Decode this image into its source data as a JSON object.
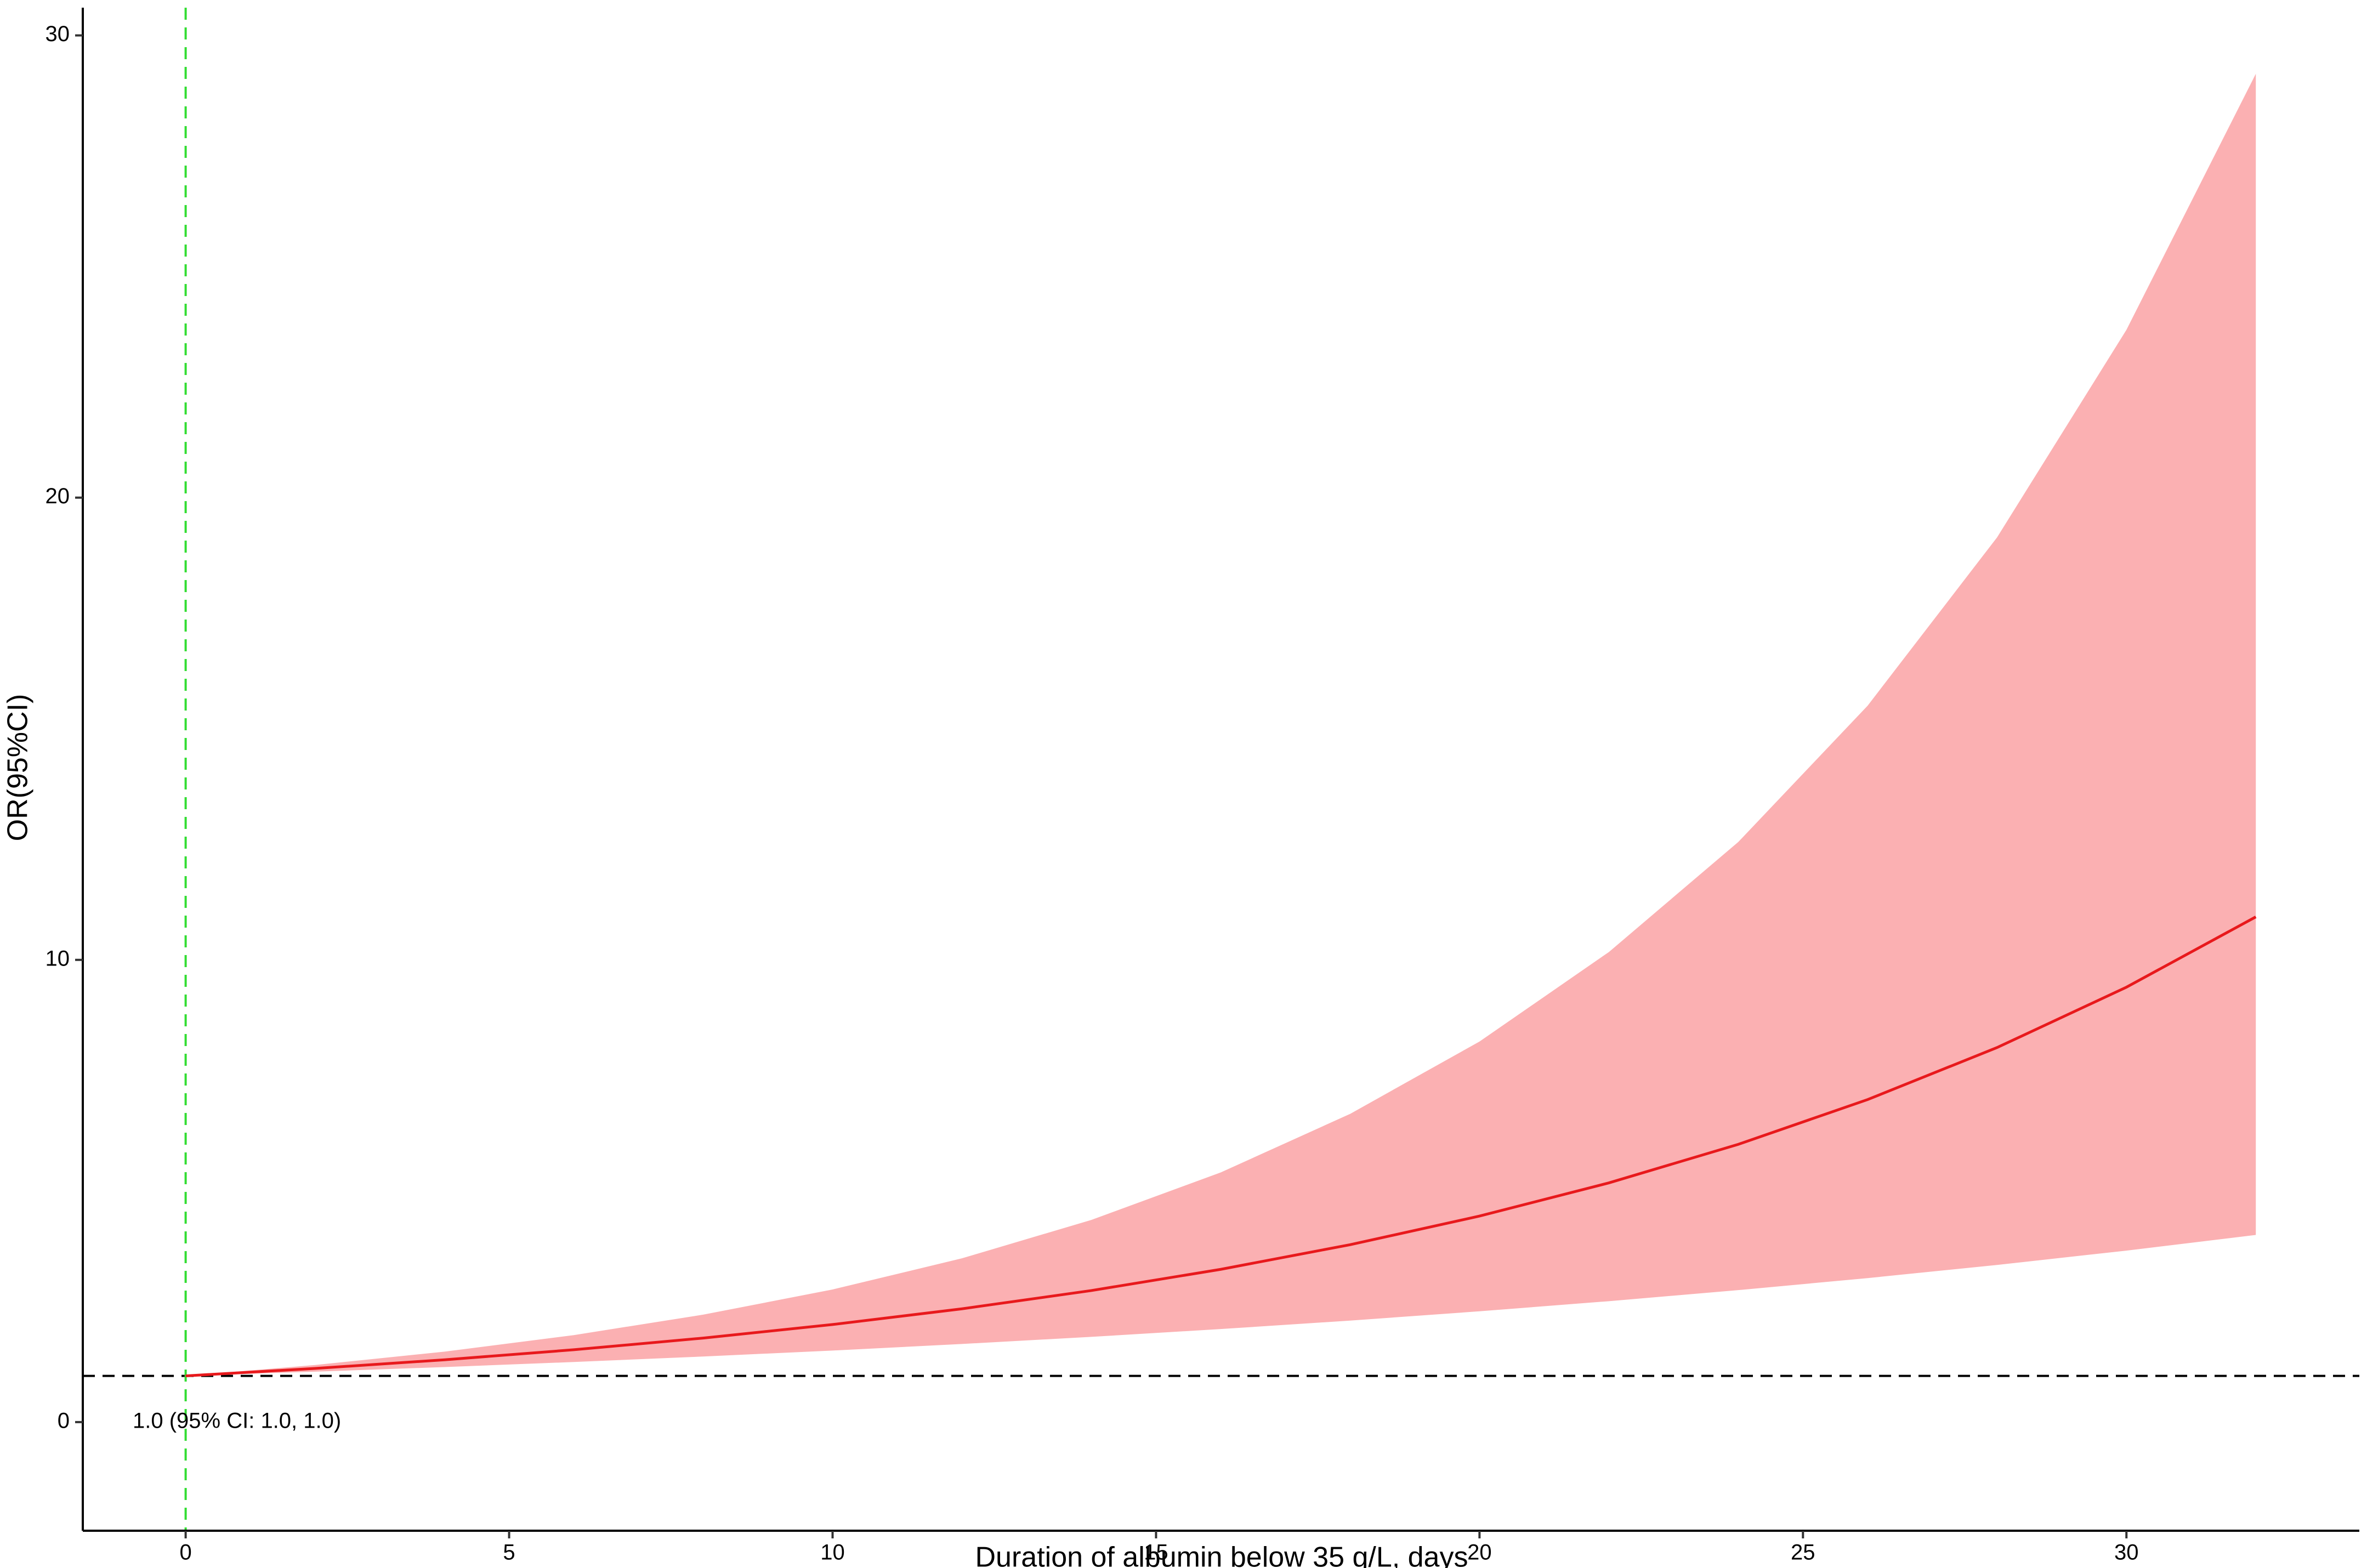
{
  "chart_data": {
    "type": "line",
    "xlabel": "Duration of albumin below 35 g/L, days",
    "ylabel": "OR(95%CI)",
    "x": [
      0,
      2,
      4,
      6,
      8,
      10,
      12,
      14,
      16,
      18,
      20,
      22,
      24,
      26,
      28,
      30,
      32
    ],
    "series": [
      {
        "color": "#e8191c",
        "values": [
          1,
          1.161,
          1.348,
          1.565,
          1.818,
          2.111,
          2.451,
          2.846,
          3.305,
          3.838,
          4.457,
          5.175,
          6.009,
          6.978,
          8.103,
          9.409,
          10.93
        ]
      }
    ],
    "band": {
      "color": "#fbb0b2",
      "upper": [
        1,
        1.235,
        1.524,
        1.882,
        2.324,
        2.869,
        3.543,
        4.374,
        5.401,
        6.668,
        8.233,
        10.17,
        12.55,
        15.5,
        19.14,
        23.63,
        29.17
      ],
      "lower": [
        1,
        1.091,
        1.191,
        1.3,
        1.419,
        1.548,
        1.69,
        1.844,
        2.013,
        2.196,
        2.397,
        2.616,
        2.855,
        3.115,
        3.4,
        3.71,
        4.049
      ]
    },
    "hline": {
      "value": 1,
      "color": "#000000"
    },
    "vline": {
      "value": 0,
      "color": "#33dd33"
    },
    "annotation": "1.0 (95% CI: 1.0, 1.0)",
    "xlim": [
      -1.59,
      33.6
    ],
    "ylim": [
      -2.35,
      30.6
    ],
    "xticks": [
      0,
      5,
      10,
      15,
      20,
      25,
      30
    ],
    "yticks": [
      0,
      10,
      20,
      30
    ]
  }
}
